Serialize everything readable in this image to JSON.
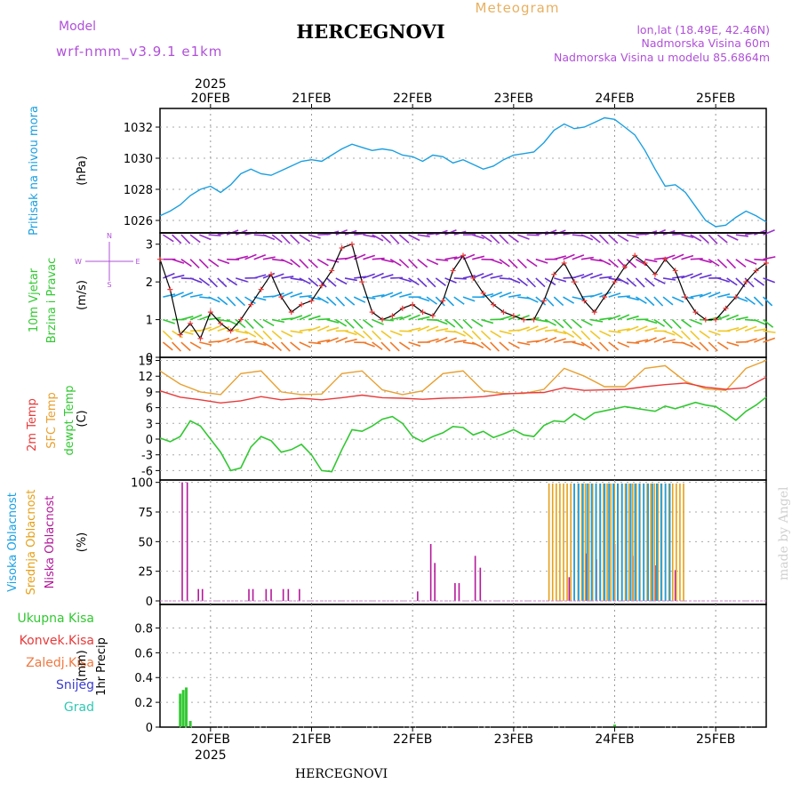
{
  "header": {
    "model_label": "Model",
    "model_name": "wrf-nmm_v3.9.1 e1km",
    "station": "HERCEGNOVI",
    "chart_type": "Meteogram",
    "lonlat": "lon,lat (18.49E, 42.46N)",
    "elevation": "Nadmorska Visina 60m",
    "model_elevation": "Nadmorska Visina u modelu 85.6864m",
    "footer_station": "HERCEGNOVI",
    "watermark": "made by Angel"
  },
  "colors": {
    "pressure": "#1a9fe0",
    "temp2m": "#e83a3a",
    "sfc": "#e8a030",
    "dewpt": "#32c832",
    "high_cloud": "#19a0e6",
    "mid_cloud": "#e6a019",
    "low_cloud": "#b4189a",
    "precip_total": "#32c832",
    "convective": "#e83a3a",
    "snow_grad": "#3c3cd2",
    "grad": "#32c8b4"
  },
  "chart_data": {
    "type": "line",
    "x_axis": {
      "year_label": "2025",
      "day_labels": [
        "20FEB",
        "21FEB",
        "22FEB",
        "23FEB",
        "24FEB",
        "25FEB"
      ],
      "day_index": [
        20,
        21,
        22,
        23,
        24,
        25
      ],
      "range_days": [
        19.5,
        25.5
      ]
    },
    "panels": [
      {
        "id": "pressure",
        "ylabel": "Pritisak na nivou mora",
        "units": "(hPa)",
        "ylim": [
          1025.2,
          1033.2
        ],
        "ticks": [
          1026,
          1028,
          1030,
          1032
        ],
        "series": [
          {
            "key": "pressure",
            "x": [
              19.5,
              19.6,
              19.7,
              19.8,
              19.9,
              20.0,
              20.1,
              20.2,
              20.3,
              20.4,
              20.5,
              20.6,
              20.7,
              20.8,
              20.9,
              21.0,
              21.1,
              21.2,
              21.3,
              21.4,
              21.5,
              21.6,
              21.7,
              21.8,
              21.9,
              22.0,
              22.1,
              22.2,
              22.3,
              22.4,
              22.5,
              22.6,
              22.7,
              22.8,
              22.9,
              23.0,
              23.1,
              23.2,
              23.3,
              23.4,
              23.5,
              23.6,
              23.7,
              23.8,
              23.9,
              24.0,
              24.1,
              24.2,
              24.3,
              24.4,
              24.5,
              24.6,
              24.7,
              24.8,
              24.9,
              25.0,
              25.1,
              25.2,
              25.3,
              25.4,
              25.5
            ],
            "y": [
              1026.3,
              1026.6,
              1027.0,
              1027.6,
              1028.0,
              1028.2,
              1027.8,
              1028.3,
              1029.0,
              1029.3,
              1029.0,
              1028.9,
              1029.2,
              1029.5,
              1029.8,
              1029.9,
              1029.8,
              1030.2,
              1030.6,
              1030.9,
              1030.7,
              1030.5,
              1030.6,
              1030.5,
              1030.2,
              1030.1,
              1029.8,
              1030.2,
              1030.1,
              1029.7,
              1029.9,
              1029.6,
              1029.3,
              1029.5,
              1029.9,
              1030.2,
              1030.3,
              1030.4,
              1031.0,
              1031.8,
              1032.2,
              1031.9,
              1032.0,
              1032.3,
              1032.6,
              1032.5,
              1032.0,
              1031.5,
              1030.5,
              1029.3,
              1028.2,
              1028.3,
              1027.8,
              1026.9,
              1026.0,
              1025.6,
              1025.7,
              1026.2,
              1026.6,
              1026.3,
              1025.9
            ]
          }
        ]
      },
      {
        "id": "wind",
        "ylabel": [
          "10m Vjetar",
          "Brzina i Pravac"
        ],
        "units": "(m/s)",
        "ylim": [
          0,
          3.3
        ],
        "ticks": [
          0,
          1,
          2,
          3
        ],
        "compass": [
          "N",
          "S",
          "W",
          "E"
        ],
        "series": [
          {
            "key": "speed",
            "color": "#000000",
            "x": [
              19.5,
              19.6,
              19.7,
              19.8,
              19.9,
              20.0,
              20.1,
              20.2,
              20.3,
              20.4,
              20.5,
              20.6,
              20.7,
              20.8,
              20.9,
              21.0,
              21.1,
              21.2,
              21.3,
              21.4,
              21.5,
              21.6,
              21.7,
              21.8,
              21.9,
              22.0,
              22.1,
              22.2,
              22.3,
              22.4,
              22.5,
              22.6,
              22.7,
              22.8,
              22.9,
              23.0,
              23.1,
              23.2,
              23.3,
              23.4,
              23.5,
              23.6,
              23.7,
              23.8,
              23.9,
              24.0,
              24.1,
              24.2,
              24.3,
              24.4,
              24.5,
              24.6,
              24.7,
              24.8,
              24.9,
              25.0,
              25.1,
              25.2,
              25.3,
              25.4,
              25.5
            ],
            "y": [
              2.6,
              1.8,
              0.6,
              0.9,
              0.5,
              1.2,
              0.9,
              0.7,
              1.0,
              1.4,
              1.8,
              2.2,
              1.6,
              1.2,
              1.4,
              1.5,
              1.9,
              2.3,
              2.9,
              3.0,
              2.0,
              1.2,
              1.0,
              1.1,
              1.3,
              1.4,
              1.2,
              1.1,
              1.5,
              2.3,
              2.7,
              2.1,
              1.7,
              1.4,
              1.2,
              1.1,
              1.0,
              1.0,
              1.5,
              2.2,
              2.5,
              2.0,
              1.5,
              1.2,
              1.6,
              2.0,
              2.4,
              2.7,
              2.5,
              2.2,
              2.6,
              2.3,
              1.6,
              1.2,
              1.0,
              1.0,
              1.3,
              1.6,
              2.0,
              2.3,
              2.5
            ]
          }
        ]
      },
      {
        "id": "temperature",
        "ylabel": [
          "2m Temp",
          "SFC Temp",
          "dewpt Temp"
        ],
        "units": "(C)",
        "ylim": [
          -7.8,
          15.6
        ],
        "ticks": [
          -6,
          -3,
          0,
          3,
          6,
          9,
          12,
          15
        ],
        "series": [
          {
            "key": "temp2m",
            "x": [
              19.5,
              19.7,
              19.9,
              20.1,
              20.3,
              20.5,
              20.7,
              20.9,
              21.1,
              21.3,
              21.5,
              21.7,
              21.9,
              22.1,
              22.3,
              22.5,
              22.7,
              22.9,
              23.1,
              23.3,
              23.5,
              23.7,
              23.9,
              24.1,
              24.3,
              24.5,
              24.7,
              24.9,
              25.1,
              25.3,
              25.5
            ],
            "y": [
              9.2,
              8.0,
              7.5,
              6.9,
              7.3,
              8.1,
              7.5,
              7.8,
              7.5,
              7.9,
              8.4,
              7.9,
              7.8,
              7.6,
              7.8,
              7.9,
              8.1,
              8.6,
              8.8,
              8.9,
              9.8,
              9.3,
              9.4,
              9.5,
              10.0,
              10.4,
              10.7,
              9.9,
              9.5,
              9.8,
              11.8
            ]
          },
          {
            "key": "sfc",
            "x": [
              19.5,
              19.7,
              19.9,
              20.1,
              20.3,
              20.5,
              20.7,
              20.9,
              21.1,
              21.3,
              21.5,
              21.7,
              21.9,
              22.1,
              22.3,
              22.5,
              22.7,
              22.9,
              23.1,
              23.3,
              23.5,
              23.7,
              23.9,
              24.1,
              24.3,
              24.5,
              24.7,
              24.9,
              25.1,
              25.3,
              25.5
            ],
            "y": [
              13.0,
              10.5,
              9.0,
              8.5,
              12.5,
              13.0,
              9.0,
              8.5,
              8.6,
              12.5,
              13.0,
              9.4,
              8.5,
              9.2,
              12.5,
              13.0,
              9.2,
              8.7,
              8.7,
              9.5,
              13.5,
              12.0,
              10.0,
              10.0,
              13.5,
              14.0,
              11.0,
              9.6,
              9.3,
              13.5,
              15.0
            ]
          },
          {
            "key": "dewpt",
            "x": [
              19.5,
              19.6,
              19.7,
              19.8,
              19.9,
              20.0,
              20.1,
              20.2,
              20.3,
              20.4,
              20.5,
              20.6,
              20.7,
              20.8,
              20.9,
              21.0,
              21.1,
              21.2,
              21.3,
              21.4,
              21.5,
              21.6,
              21.7,
              21.8,
              21.9,
              22.0,
              22.1,
              22.2,
              22.3,
              22.4,
              22.5,
              22.6,
              22.7,
              22.8,
              22.9,
              23.0,
              23.1,
              23.2,
              23.3,
              23.4,
              23.5,
              23.6,
              23.7,
              23.8,
              23.9,
              24.0,
              24.1,
              24.2,
              24.3,
              24.4,
              24.5,
              24.6,
              24.7,
              24.8,
              24.9,
              25.0,
              25.1,
              25.2,
              25.3,
              25.4,
              25.5
            ],
            "y": [
              0.2,
              -0.5,
              0.5,
              3.5,
              2.5,
              0.0,
              -2.5,
              -6.0,
              -5.5,
              -1.5,
              0.5,
              -0.3,
              -2.5,
              -2.0,
              -1.0,
              -3.0,
              -6.0,
              -6.2,
              -2.0,
              1.8,
              1.5,
              2.5,
              3.8,
              4.3,
              3.0,
              0.5,
              -0.5,
              0.5,
              1.2,
              2.4,
              2.2,
              0.8,
              1.5,
              0.3,
              1.0,
              1.8,
              0.8,
              0.5,
              2.6,
              3.5,
              3.3,
              4.8,
              3.7,
              5.0,
              5.4,
              5.8,
              6.2,
              5.9,
              5.6,
              5.3,
              6.3,
              5.8,
              6.4,
              7.0,
              6.5,
              6.2,
              5.0,
              3.6,
              5.3,
              6.5,
              8.0
            ]
          }
        ]
      },
      {
        "id": "clouds",
        "ylabel": [
          "Visoka Oblacnost",
          "Srednja Oblacnost",
          "Niska Oblacnost"
        ],
        "units": "(%)",
        "ylim": [
          -3,
          102
        ],
        "ticks": [
          0,
          25,
          50,
          75,
          100
        ],
        "low_cloud": [
          {
            "x": 19.72,
            "y": 100
          },
          {
            "x": 19.77,
            "y": 100
          },
          {
            "x": 19.88,
            "y": 10
          },
          {
            "x": 19.92,
            "y": 10
          },
          {
            "x": 20.38,
            "y": 10
          },
          {
            "x": 20.42,
            "y": 10
          },
          {
            "x": 20.55,
            "y": 10
          },
          {
            "x": 20.6,
            "y": 10
          },
          {
            "x": 20.72,
            "y": 10
          },
          {
            "x": 20.77,
            "y": 10
          },
          {
            "x": 20.88,
            "y": 10
          },
          {
            "x": 22.05,
            "y": 8
          },
          {
            "x": 22.18,
            "y": 48
          },
          {
            "x": 22.22,
            "y": 32
          },
          {
            "x": 22.42,
            "y": 15
          },
          {
            "x": 22.46,
            "y": 15
          },
          {
            "x": 22.62,
            "y": 38
          },
          {
            "x": 22.67,
            "y": 28
          },
          {
            "x": 23.55,
            "y": 20
          },
          {
            "x": 23.72,
            "y": 40
          },
          {
            "x": 23.82,
            "y": 35
          },
          {
            "x": 24.0,
            "y": 48
          },
          {
            "x": 24.18,
            "y": 38
          },
          {
            "x": 24.4,
            "y": 30
          },
          {
            "x": 24.6,
            "y": 26
          }
        ],
        "mid_cloud": {
          "from": 23.35,
          "to": 24.7,
          "step": 0.036,
          "height": 99
        },
        "high_cloud": {
          "from": 23.6,
          "to": 24.55,
          "step": 0.043,
          "height": 99
        }
      },
      {
        "id": "precip",
        "ylabel": "1hr Precip",
        "units": "(mm)",
        "ylim": [
          0,
          0.99
        ],
        "ticks": [
          0,
          0.2,
          0.4,
          0.6,
          0.8
        ],
        "legend": [
          "Ukupna Kisa",
          "Konvek.Kisa",
          "Zaledj.Kisa",
          "Snijeg",
          "Grad"
        ],
        "total_rain": [
          {
            "x": 19.7,
            "y": 0.27
          },
          {
            "x": 19.73,
            "y": 0.3
          },
          {
            "x": 19.76,
            "y": 0.32
          },
          {
            "x": 19.8,
            "y": 0.05
          },
          {
            "x": 24.0,
            "y": 0.02
          }
        ]
      }
    ]
  }
}
